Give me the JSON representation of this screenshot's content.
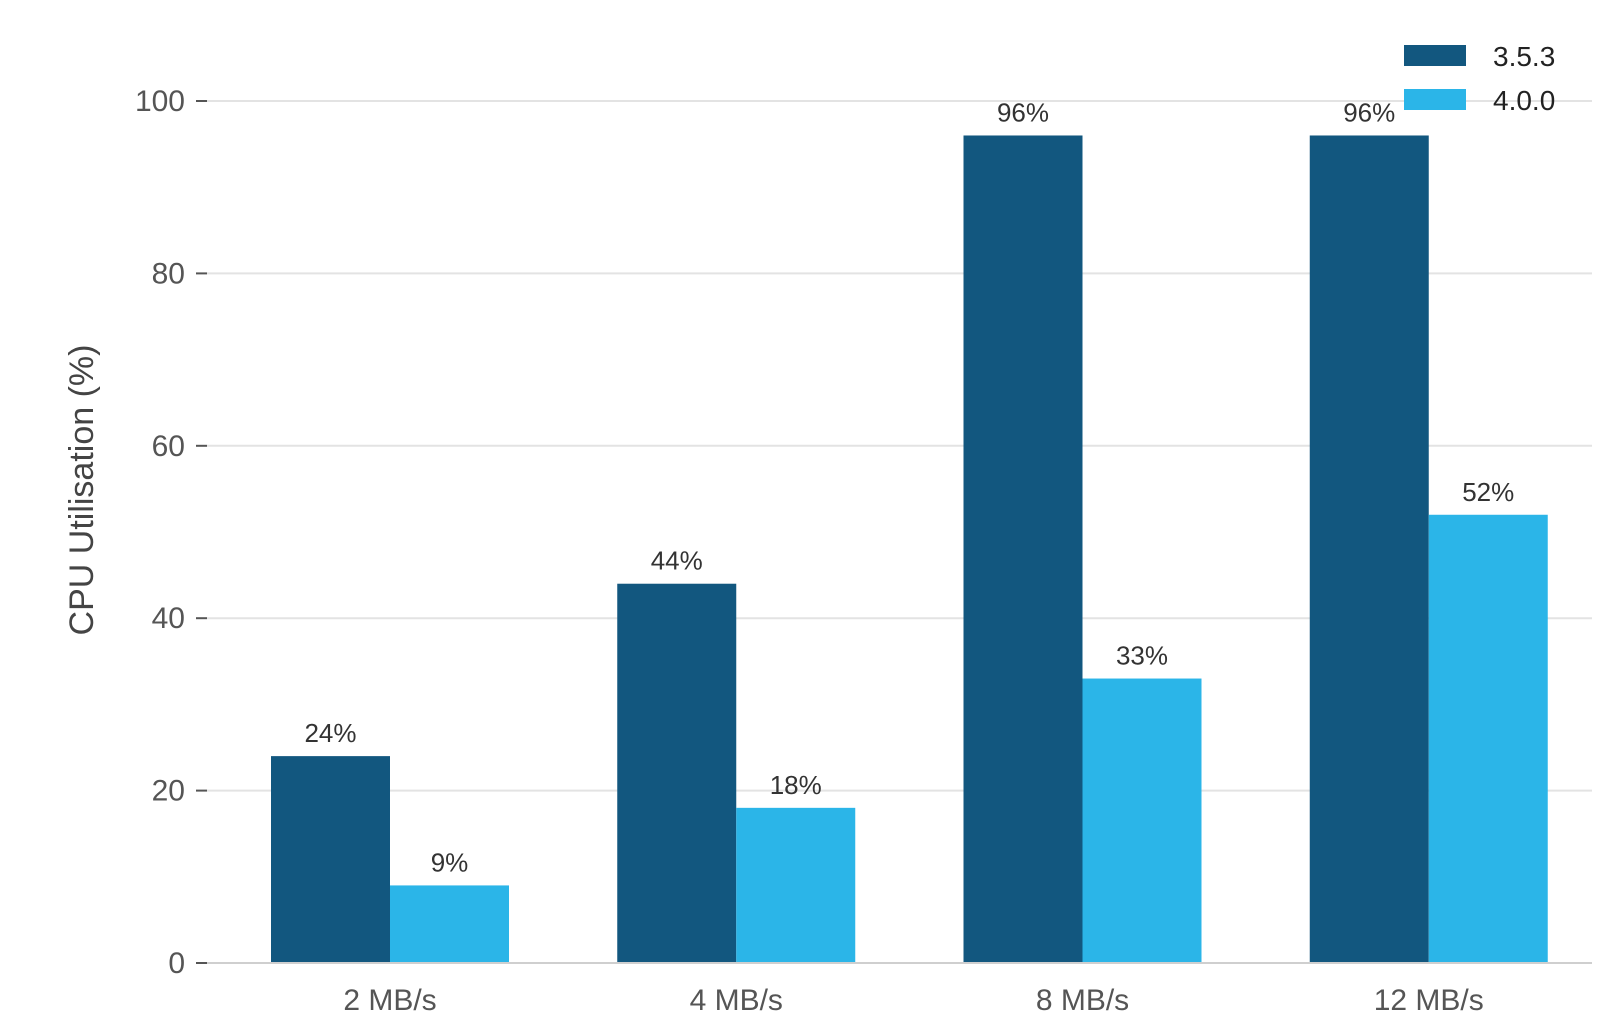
{
  "chart_data": {
    "type": "bar",
    "title": "",
    "xlabel": "",
    "ylabel": "CPU Utilisation (%)",
    "ylim": [
      0,
      100
    ],
    "yticks": [
      0,
      20,
      40,
      60,
      80,
      100
    ],
    "categories": [
      "2 MB/s",
      "4 MB/s",
      "8 MB/s",
      "12 MB/s"
    ],
    "series": [
      {
        "name": "3.5.3",
        "color": "#12577f",
        "values": [
          24,
          44,
          96,
          96
        ],
        "labels": [
          "24%",
          "44%",
          "96%",
          "96%"
        ]
      },
      {
        "name": "4.0.0",
        "color": "#2bb5e8",
        "values": [
          9,
          18,
          33,
          52
        ],
        "labels": [
          "9%",
          "18%",
          "33%",
          "52%"
        ]
      }
    ],
    "legend_position": "top-right",
    "grid": true
  }
}
